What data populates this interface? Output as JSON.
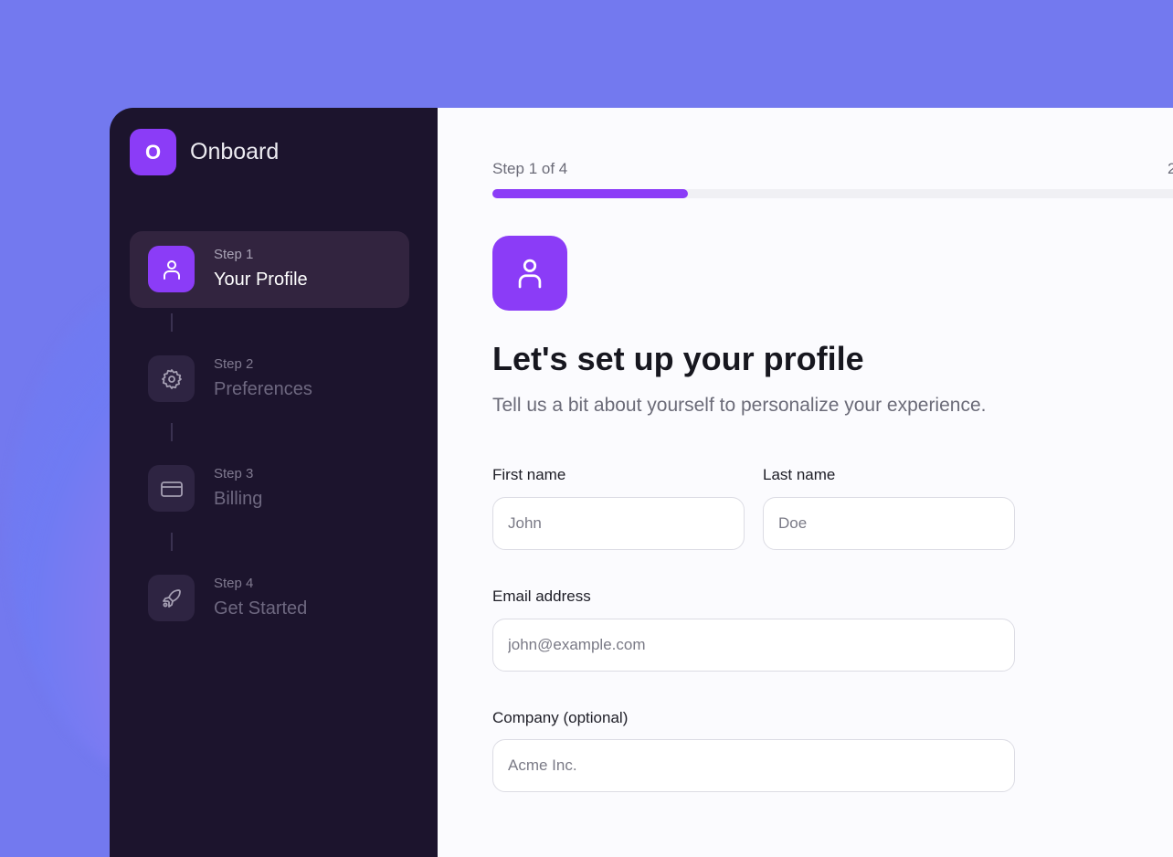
{
  "app": {
    "logo_letter": "O",
    "name": "Onboard"
  },
  "colors": {
    "accent": "#8b3cf7",
    "sidebar_bg": "#1c142d",
    "page_bg": "#7379ef"
  },
  "steps": [
    {
      "number": "Step 1",
      "name": "Your Profile",
      "icon": "user-icon",
      "active": true
    },
    {
      "number": "Step 2",
      "name": "Preferences",
      "icon": "gear-icon",
      "active": false
    },
    {
      "number": "Step 3",
      "name": "Billing",
      "icon": "credit-card-icon",
      "active": false
    },
    {
      "number": "Step 4",
      "name": "Get Started",
      "icon": "rocket-icon",
      "active": false
    }
  ],
  "progress": {
    "label": "Step 1 of 4",
    "value_text": "2",
    "fraction": 0.25
  },
  "form": {
    "title": "Let's set up your profile",
    "subtitle": "Tell us a bit about yourself to personalize your experience.",
    "first_name": {
      "label": "First name",
      "placeholder": "John",
      "value": ""
    },
    "last_name": {
      "label": "Last name",
      "placeholder": "Doe",
      "value": ""
    },
    "email": {
      "label": "Email address",
      "placeholder": "john@example.com",
      "value": ""
    },
    "company": {
      "label": "Company (optional)",
      "placeholder": "Acme Inc.",
      "value": ""
    }
  }
}
